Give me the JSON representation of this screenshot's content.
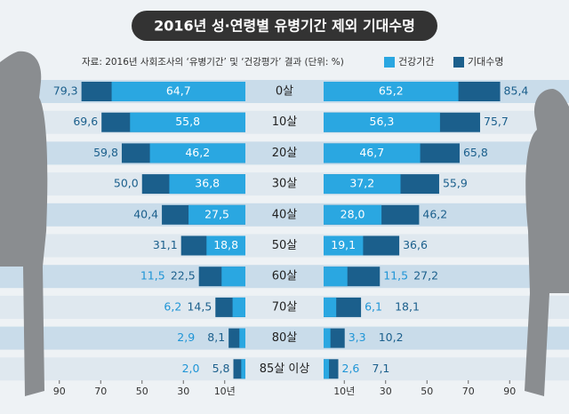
{
  "chart_data": [
    {
      "type": "bar",
      "orientation": "horizontal",
      "title": "2016년 성·연령별 유병기간 제외 기대수명",
      "subtitle": "자료: 2016년 사회조사의 ‘유병기간’ 및 ‘건강평가’ 결과 (단위: %)",
      "categories": [
        "0살",
        "10살",
        "20살",
        "30살",
        "40살",
        "50살",
        "60살",
        "70살",
        "80살",
        "85살 이상"
      ],
      "series": [
        {
          "name": "건강기간",
          "color": "#2aa7e1",
          "values": [
            64.7,
            55.8,
            46.2,
            36.8,
            27.5,
            18.8,
            11.5,
            6.2,
            2.9,
            2.0
          ],
          "value_labels": [
            "64,7",
            "55,8",
            "46,2",
            "36,8",
            "27,5",
            "18,8",
            "11,5",
            "6,2",
            "2,9",
            "2,0"
          ]
        },
        {
          "name": "기대수명",
          "color": "#1b5f8c",
          "values": [
            79.3,
            69.6,
            59.8,
            50.0,
            40.4,
            31.1,
            22.5,
            14.5,
            8.1,
            5.8
          ],
          "value_labels": [
            "79,3",
            "69,6",
            "59,8",
            "50,0",
            "40,4",
            "31,1",
            "22,5",
            "14,5",
            "8,1",
            "5,8"
          ]
        }
      ],
      "xlim": [
        100,
        0
      ],
      "xticks": [
        90,
        70,
        50,
        30,
        {
          "value": 10,
          "label": "10년"
        }
      ]
    },
    {
      "type": "bar",
      "orientation": "horizontal",
      "series": [
        {
          "color": "#2aa7e1",
          "values": [
            65.2,
            56.3,
            46.7,
            37.2,
            28.0,
            19.1,
            11.5,
            6.1,
            3.3,
            2.6
          ],
          "value_labels": [
            "65,2",
            "56,3",
            "46,7",
            "37,2",
            "28,0",
            "19,1",
            "11,5",
            "6,1",
            "3,3",
            "2,6"
          ]
        },
        {
          "color": "#1b5f8c",
          "values": [
            85.4,
            75.7,
            65.8,
            55.9,
            46.2,
            36.6,
            27.2,
            18.1,
            10.2,
            7.1
          ],
          "value_labels": [
            "85,4",
            "75,7",
            "65,8",
            "55,9",
            "46,2",
            "36,6",
            "27,2",
            "18,1",
            "10,2",
            "7,1"
          ]
        }
      ],
      "xlim": [
        0,
        100
      ],
      "xticks": [
        {
          "value": 10,
          "label": "10년"
        },
        30,
        50,
        70,
        90
      ]
    }
  ]
}
